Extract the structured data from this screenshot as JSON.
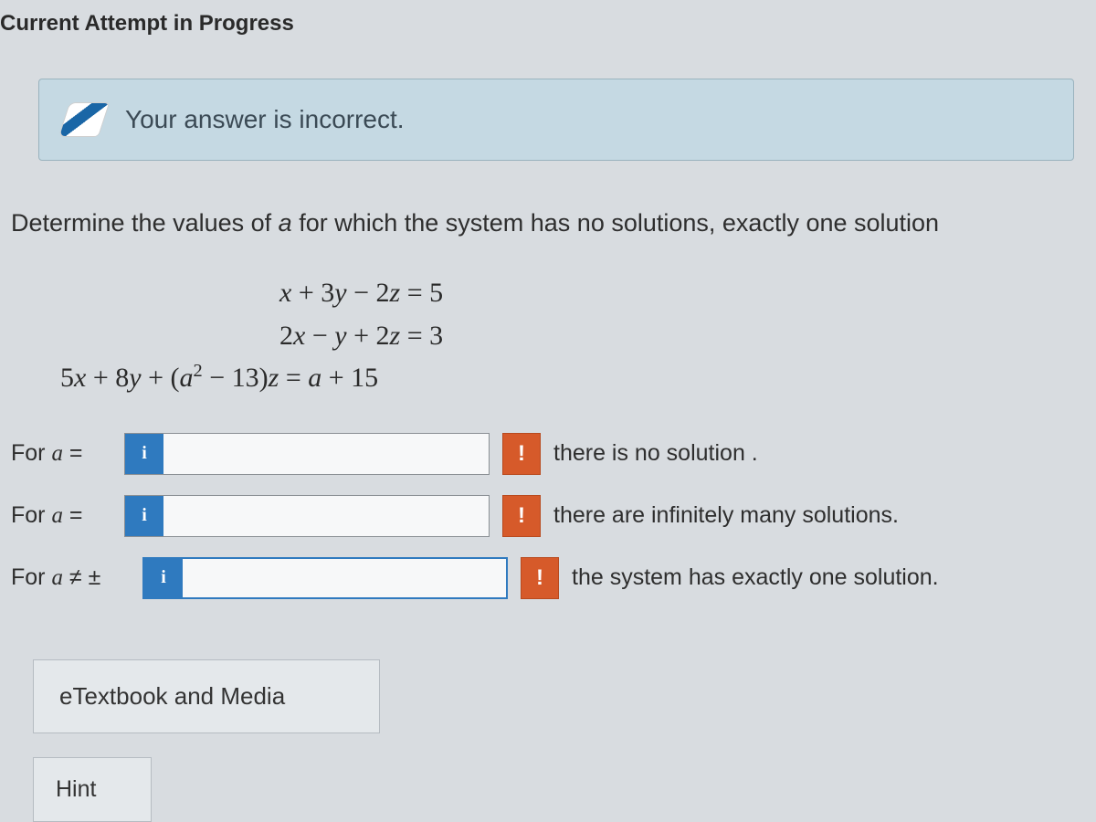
{
  "header": {
    "title": "Current Attempt in Progress"
  },
  "alert": {
    "message": "Your answer is incorrect."
  },
  "prompt": {
    "prefix": "Determine the values of ",
    "var": "a",
    "suffix": " for which the system has no solutions, exactly one solution"
  },
  "equations": {
    "line1_html": "<span class='var'>x</span> + 3<span class='var'>y</span> − 2<span class='var'>z</span> = 5",
    "line2_html": "2<span class='var'>x</span> − <span class='var'>y</span> + 2<span class='var'>z</span> = 3",
    "line3_html": "5<span class='var'>x</span> + 8<span class='var'>y</span> + (<span class='var'>a</span><sup>2</sup> − 13)<span class='var'>z</span> = <span class='var'>a</span> + 15"
  },
  "rows": [
    {
      "label_prefix": "For ",
      "var": "a",
      "rel": " = ",
      "value": "",
      "tail": "there is no solution ."
    },
    {
      "label_prefix": "For ",
      "var": "a",
      "rel": " = ",
      "value": "",
      "tail": "there are infinitely many solutions."
    },
    {
      "label_prefix": "For ",
      "var": "a",
      "rel": " ≠ ± ",
      "value": "",
      "tail": "the system has exactly one solution."
    }
  ],
  "icons": {
    "info_glyph": "i",
    "error_glyph": "!"
  },
  "links": {
    "etextbook": "eTextbook and Media",
    "hint": "Hint"
  },
  "colors": {
    "page_bg": "#d8dce0",
    "alert_bg": "#c5d9e3",
    "info_bg": "#2f7abf",
    "error_bg": "#d65a2a"
  }
}
